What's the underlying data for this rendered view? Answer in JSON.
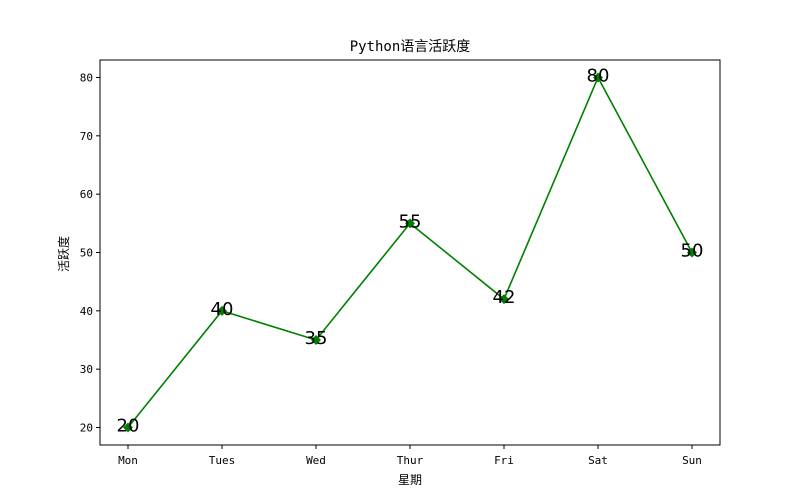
{
  "chart_data": {
    "type": "line",
    "title": "Python语言活跃度",
    "xlabel": "星期",
    "ylabel": "活跃度",
    "categories": [
      "Mon",
      "Tues",
      "Wed",
      "Thur",
      "Fri",
      "Sat",
      "Sun"
    ],
    "series": [
      {
        "values": [
          20,
          40,
          35,
          55,
          42,
          80,
          50
        ],
        "color": "#008000",
        "marker": "diamond"
      }
    ],
    "ylim": [
      17,
      83
    ],
    "yticks": [
      20,
      30,
      40,
      50,
      60,
      70,
      80
    ],
    "grid": false,
    "legend": "none"
  }
}
